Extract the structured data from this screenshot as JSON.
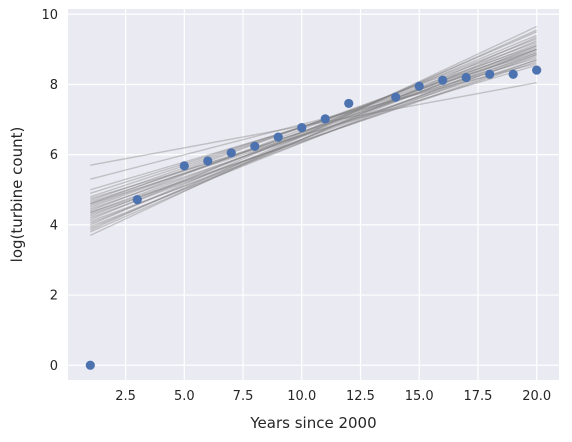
{
  "chart_data": {
    "type": "scatter",
    "title": "",
    "xlabel": "Years since 2000",
    "ylabel": "log(turbine count)",
    "xlim": [
      0.05,
      20.95
    ],
    "ylim": [
      -0.42,
      10.15
    ],
    "x_ticks": [
      2.5,
      5.0,
      7.5,
      10.0,
      12.5,
      15.0,
      17.5,
      20.0
    ],
    "x_tick_labels": [
      "2.5",
      "5.0",
      "7.5",
      "10.0",
      "12.5",
      "15.0",
      "17.5",
      "20.0"
    ],
    "y_ticks": [
      0,
      2,
      4,
      6,
      8,
      10
    ],
    "y_tick_labels": [
      "0",
      "2",
      "4",
      "6",
      "8",
      "10"
    ],
    "grid": true,
    "background": "#EAEAF2",
    "colors": {
      "points": "#4C72B0",
      "lines": "#808080",
      "grid": "#FFFFFF"
    },
    "points": [
      {
        "x": 1,
        "y": 0.0
      },
      {
        "x": 3,
        "y": 4.72
      },
      {
        "x": 5,
        "y": 5.68
      },
      {
        "x": 6,
        "y": 5.82
      },
      {
        "x": 7,
        "y": 6.05
      },
      {
        "x": 8,
        "y": 6.24
      },
      {
        "x": 9,
        "y": 6.5
      },
      {
        "x": 10,
        "y": 6.77
      },
      {
        "x": 11,
        "y": 7.02
      },
      {
        "x": 12,
        "y": 7.46
      },
      {
        "x": 14,
        "y": 7.64
      },
      {
        "x": 15,
        "y": 7.95
      },
      {
        "x": 16,
        "y": 8.12
      },
      {
        "x": 17,
        "y": 8.2
      },
      {
        "x": 18,
        "y": 8.29
      },
      {
        "x": 19,
        "y": 8.29
      },
      {
        "x": 20,
        "y": 8.41
      }
    ],
    "regression_lines": [
      {
        "x": [
          1,
          20
        ],
        "y": [
          5.7,
          8.05
        ]
      },
      {
        "x": [
          1,
          20
        ],
        "y": [
          5.3,
          8.6
        ]
      },
      {
        "x": [
          1,
          20
        ],
        "y": [
          5.0,
          8.75
        ]
      },
      {
        "x": [
          1,
          20
        ],
        "y": [
          4.9,
          8.9
        ]
      },
      {
        "x": [
          1,
          20
        ],
        "y": [
          4.8,
          9.0
        ]
      },
      {
        "x": [
          1,
          20
        ],
        "y": [
          4.7,
          9.1
        ]
      },
      {
        "x": [
          1,
          20
        ],
        "y": [
          4.65,
          8.85
        ]
      },
      {
        "x": [
          1,
          20
        ],
        "y": [
          4.6,
          9.2
        ]
      },
      {
        "x": [
          1,
          20
        ],
        "y": [
          4.55,
          8.95
        ]
      },
      {
        "x": [
          1,
          20
        ],
        "y": [
          4.5,
          9.05
        ]
      },
      {
        "x": [
          1,
          20
        ],
        "y": [
          4.45,
          8.8
        ]
      },
      {
        "x": [
          1,
          20
        ],
        "y": [
          4.4,
          9.3
        ]
      },
      {
        "x": [
          1,
          20
        ],
        "y": [
          4.35,
          9.0
        ]
      },
      {
        "x": [
          1,
          20
        ],
        "y": [
          4.3,
          8.7
        ]
      },
      {
        "x": [
          1,
          20
        ],
        "y": [
          4.25,
          9.15
        ]
      },
      {
        "x": [
          1,
          20
        ],
        "y": [
          4.2,
          8.9
        ]
      },
      {
        "x": [
          1,
          20
        ],
        "y": [
          4.15,
          9.4
        ]
      },
      {
        "x": [
          1,
          20
        ],
        "y": [
          4.1,
          8.85
        ]
      },
      {
        "x": [
          1,
          20
        ],
        "y": [
          4.05,
          9.1
        ]
      },
      {
        "x": [
          1,
          20
        ],
        "y": [
          4.0,
          9.5
        ]
      },
      {
        "x": [
          1,
          20
        ],
        "y": [
          3.95,
          9.0
        ]
      },
      {
        "x": [
          1,
          20
        ],
        "y": [
          3.9,
          9.25
        ]
      },
      {
        "x": [
          1,
          20
        ],
        "y": [
          3.85,
          9.55
        ]
      },
      {
        "x": [
          1,
          20
        ],
        "y": [
          3.8,
          9.35
        ]
      },
      {
        "x": [
          1,
          20
        ],
        "y": [
          3.7,
          9.65
        ]
      },
      {
        "x": [
          1,
          20
        ],
        "y": [
          4.6,
          8.7
        ]
      },
      {
        "x": [
          1,
          20
        ],
        "y": [
          4.75,
          8.55
        ]
      },
      {
        "x": [
          1,
          20
        ],
        "y": [
          4.35,
          8.65
        ]
      }
    ]
  }
}
